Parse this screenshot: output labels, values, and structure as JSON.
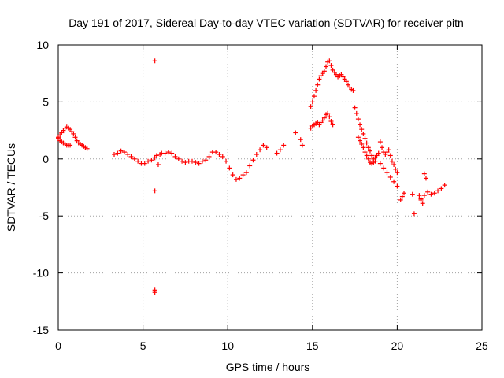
{
  "chart_data": {
    "type": "scatter",
    "title": "Day 191 of 2017, Sidereal Day-to-day VTEC variation (SDTVAR) for receiver pitn",
    "xlabel": "GPS time / hours",
    "ylabel": "SDTVAR / TECUs",
    "xlim": [
      0,
      25
    ],
    "ylim": [
      -15,
      10
    ],
    "xticks": [
      0,
      5,
      10,
      15,
      20,
      25
    ],
    "yticks": [
      -15,
      -10,
      -5,
      0,
      5,
      10
    ],
    "xtick_labels": [
      "0",
      "5",
      "10",
      "15",
      "20",
      "25"
    ],
    "ytick_labels": [
      "-15",
      "-10",
      "-5",
      "0",
      "5",
      "10"
    ],
    "grid": true,
    "marker": "+",
    "color": "#ff0000",
    "series": [
      {
        "name": "SDTVAR",
        "x": [
          0.0,
          0.1,
          0.2,
          0.3,
          0.4,
          0.5,
          0.6,
          0.7,
          0.8,
          0.9,
          1.0,
          1.1,
          1.2,
          1.3,
          1.4,
          1.5,
          1.6,
          1.7,
          0.0,
          0.1,
          0.2,
          0.3,
          0.4,
          0.5,
          0.6,
          0.7,
          3.3,
          3.5,
          3.7,
          3.9,
          4.1,
          4.3,
          4.5,
          4.7,
          4.9,
          5.1,
          5.3,
          5.5,
          5.7,
          5.8,
          5.9,
          6.0,
          6.1,
          6.3,
          6.5,
          6.7,
          6.9,
          7.1,
          7.3,
          7.5,
          7.7,
          7.9,
          8.1,
          8.3,
          8.5,
          8.7,
          8.9,
          9.1,
          9.3,
          9.5,
          9.7,
          9.9,
          10.1,
          10.3,
          10.5,
          10.7,
          10.9,
          11.1,
          11.3,
          11.5,
          11.7,
          11.9,
          12.1,
          12.3,
          12.9,
          13.1,
          13.3,
          14.0,
          14.3,
          14.4,
          14.9,
          15.0,
          15.1,
          15.2,
          15.3,
          15.4,
          15.5,
          15.6,
          15.7,
          15.8,
          15.9,
          16.0,
          16.1,
          16.2,
          16.3,
          16.4,
          16.5,
          16.6,
          16.7,
          16.8,
          16.9,
          17.0,
          17.1,
          17.2,
          17.3,
          17.4,
          17.5,
          17.6,
          17.7,
          17.8,
          17.9,
          18.0,
          18.1,
          18.2,
          18.3,
          18.4,
          18.5,
          18.6,
          18.7,
          14.9,
          15.0,
          15.1,
          15.2,
          15.3,
          15.4,
          15.5,
          15.6,
          15.7,
          15.8,
          15.9,
          16.0,
          16.1,
          16.2,
          17.7,
          17.8,
          17.9,
          18.0,
          18.1,
          18.2,
          18.3,
          18.4,
          18.5,
          18.6,
          18.7,
          18.8,
          18.9,
          19.0,
          19.1,
          19.2,
          19.3,
          19.4,
          19.5,
          19.6,
          19.7,
          19.8,
          19.9,
          20.0,
          19.0,
          19.2,
          19.4,
          19.6,
          19.8,
          20.0,
          20.2,
          20.3,
          20.4,
          20.9,
          21.0,
          21.3,
          21.4,
          21.5,
          21.6,
          21.7,
          21.4,
          21.6,
          21.8,
          22.0,
          22.2,
          22.4,
          22.6,
          22.8,
          5.7,
          5.7,
          5.7,
          5.7
        ],
        "y": [
          1.9,
          2.1,
          2.3,
          2.5,
          2.7,
          2.8,
          2.7,
          2.6,
          2.4,
          2.2,
          1.9,
          1.6,
          1.4,
          1.3,
          1.2,
          1.1,
          1.0,
          0.9,
          1.8,
          1.6,
          1.5,
          1.4,
          1.3,
          1.2,
          1.2,
          1.2,
          0.4,
          0.5,
          0.7,
          0.6,
          0.4,
          0.2,
          0.0,
          -0.2,
          -0.4,
          -0.4,
          -0.2,
          -0.1,
          0.1,
          0.3,
          -0.5,
          0.4,
          0.5,
          0.5,
          0.6,
          0.5,
          0.2,
          0.0,
          -0.2,
          -0.3,
          -0.2,
          -0.2,
          -0.3,
          -0.4,
          -0.2,
          -0.1,
          0.2,
          0.6,
          0.6,
          0.4,
          0.2,
          -0.2,
          -0.8,
          -1.4,
          -1.8,
          -1.7,
          -1.4,
          -1.2,
          -0.6,
          -0.1,
          0.4,
          0.8,
          1.2,
          1.0,
          0.5,
          0.8,
          1.2,
          2.3,
          1.7,
          1.2,
          4.6,
          5.0,
          5.5,
          6.0,
          6.5,
          7.0,
          7.3,
          7.5,
          7.7,
          8.1,
          8.5,
          8.6,
          8.2,
          7.8,
          7.6,
          7.4,
          7.2,
          7.3,
          7.4,
          7.2,
          7.0,
          6.8,
          6.5,
          6.3,
          6.1,
          6.0,
          4.5,
          4.0,
          3.5,
          3.0,
          2.6,
          2.2,
          1.8,
          1.4,
          1.0,
          0.7,
          0.3,
          0.0,
          -0.2,
          2.7,
          2.9,
          3.0,
          3.1,
          3.2,
          3.0,
          3.2,
          3.4,
          3.6,
          3.9,
          4.0,
          3.7,
          3.3,
          3.0,
          1.9,
          1.6,
          1.3,
          1.0,
          0.6,
          0.3,
          0.0,
          -0.3,
          -0.4,
          -0.3,
          0.1,
          0.3,
          0.5,
          1.5,
          1.0,
          0.6,
          0.4,
          0.6,
          0.8,
          0.3,
          -0.2,
          -0.5,
          -0.9,
          -1.2,
          -0.4,
          -0.8,
          -1.2,
          -1.6,
          -2.0,
          -2.4,
          -3.6,
          -3.3,
          -3.0,
          -3.1,
          -4.8,
          -3.2,
          -3.6,
          -3.9,
          -1.3,
          -1.7,
          -3.5,
          -3.2,
          -2.9,
          -3.1,
          -3.0,
          -2.8,
          -2.6,
          -2.3,
          8.6,
          -2.8,
          -11.5,
          -11.7
        ]
      }
    ]
  }
}
